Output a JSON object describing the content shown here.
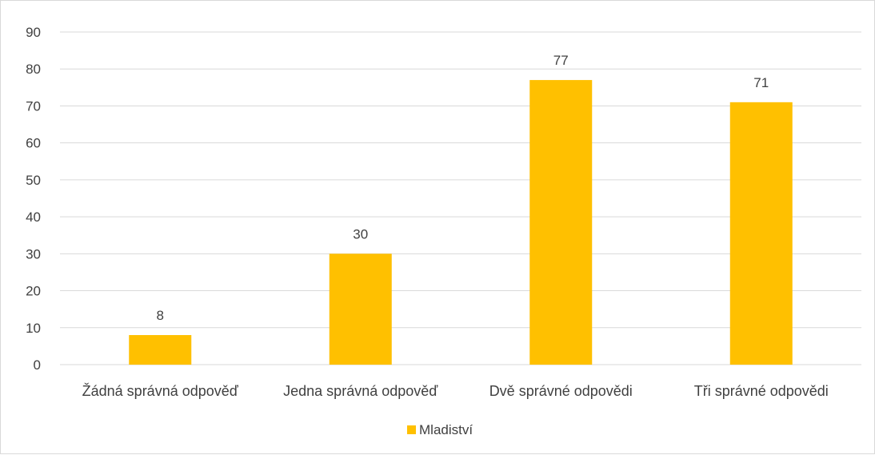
{
  "chart_data": {
    "type": "bar",
    "title": "",
    "xlabel": "",
    "ylabel": "",
    "categories": [
      "Žádná správná odpověď",
      "Jedna správná odpověď",
      "Dvě správné odpovědi",
      "Tři správné odpovědi"
    ],
    "series": [
      {
        "name": "Mladiství",
        "values": [
          8,
          30,
          77,
          71
        ],
        "color": "#FFC000"
      }
    ],
    "ylim": [
      0,
      90
    ],
    "yticks": [
      0,
      10,
      20,
      30,
      40,
      50,
      60,
      70,
      80,
      90
    ],
    "grid": true,
    "legend": "bottom",
    "data_labels": true
  }
}
